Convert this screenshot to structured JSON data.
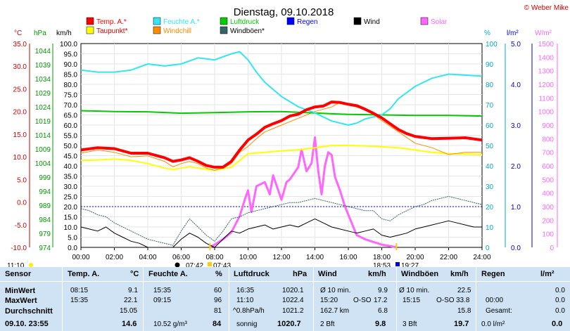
{
  "title": "Dienstag, 09.10.2018",
  "copyright": "© Weber Mike",
  "legend": [
    {
      "label": "Temp. A.*",
      "color": "#ff0000"
    },
    {
      "label": "Feuchte A.*",
      "color": "#33e6f0"
    },
    {
      "label": "Luftdruck",
      "color": "#00cc00"
    },
    {
      "label": "Regen",
      "color": "#0000ff"
    },
    {
      "label": "Wind",
      "color": "#000000"
    },
    {
      "label": "Solar",
      "color": "#ff66ff"
    },
    {
      "label": "Taupunkt*",
      "color": "#ffff00"
    },
    {
      "label": "Windchill",
      "color": "#ff8c00"
    },
    {
      "label": "Windböen*",
      "color": "#336666"
    }
  ],
  "axis_units": {
    "temp": "°C",
    "pressure": "hPa",
    "wind": "km/h",
    "humidity": "%",
    "rain": "l/m²",
    "solar": "W/m²"
  },
  "axis_ticks": {
    "temp": [
      "35.0",
      "30.0",
      "25.0",
      "20.0",
      "15.0",
      "10.0",
      "5.0",
      "0.0",
      "-5.0",
      "-10.0"
    ],
    "pressure": [
      "1044",
      "1039",
      "1034",
      "1029",
      "1024",
      "1019",
      "1014",
      "1009",
      "1004",
      "999",
      "994",
      "989",
      "984",
      "979",
      "974"
    ],
    "wind": [
      "100.0",
      "95.0",
      "90.0",
      "85.0",
      "80.0",
      "75.0",
      "70.0",
      "65.0",
      "60.0",
      "55.0",
      "50.0",
      "45.0",
      "40.0",
      "35.0",
      "30.0",
      "25.0",
      "20.0",
      "15.0",
      "10.0",
      "5.0",
      "0.0"
    ],
    "humidity": [
      "100",
      "90",
      "80",
      "70",
      "60",
      "50",
      "40",
      "30",
      "20",
      "10",
      "0"
    ],
    "rain": [
      "5.0",
      "4.0",
      "3.0",
      "2.0",
      "1.0",
      "0.0"
    ],
    "solar": [
      "1500",
      "1400",
      "1300",
      "1200",
      "1100",
      "1000",
      "900",
      "800",
      "700",
      "600",
      "500",
      "400",
      "300",
      "200",
      "100",
      "0"
    ]
  },
  "x_ticks": [
    "00:00",
    "02:00",
    "04:00",
    "06:00",
    "08:00",
    "10:00",
    "12:00",
    "14:00",
    "16:00",
    "18:00",
    "20:00",
    "22:00",
    "24:00"
  ],
  "sun_times": {
    "sunrise_start": "07:42",
    "sunrise": "07:43",
    "sunset": "18:53",
    "sunset_end": "19:27",
    "left_time": "11:10"
  },
  "chart_data": {
    "type": "line",
    "title": "Dienstag, 09.10.2018",
    "x_unit": "hour",
    "xlim": [
      0,
      24
    ],
    "series": [
      {
        "name": "Temp. A.*",
        "axis": "°C",
        "ylim": [
          -10,
          35
        ],
        "color": "#ff0000",
        "x": [
          0,
          1,
          2,
          3,
          4,
          5,
          5.5,
          6,
          6.5,
          7,
          7.5,
          8,
          8.5,
          9,
          9.5,
          10,
          10.5,
          11,
          11.5,
          12,
          12.5,
          13,
          13.5,
          14,
          14.5,
          15,
          15.5,
          16,
          16.5,
          17,
          17.5,
          18,
          18.5,
          19,
          19.5,
          20,
          21,
          22,
          23,
          24
        ],
        "y": [
          11.5,
          12,
          11.8,
          10.8,
          10.8,
          9.8,
          9.0,
          9.3,
          9.8,
          9.0,
          8.1,
          7.7,
          7.7,
          9.0,
          11.5,
          13.7,
          15.0,
          16.5,
          17.3,
          18.0,
          19.0,
          19.4,
          20.4,
          21.0,
          21.2,
          22.1,
          22.0,
          21.6,
          21.3,
          20.5,
          19.6,
          18.6,
          17.3,
          16.0,
          15.1,
          14.5,
          14.0,
          14.1,
          14.2,
          13.7
        ]
      },
      {
        "name": "Feuchte A.*",
        "axis": "%",
        "ylim": [
          0,
          100
        ],
        "color": "#33e6f0",
        "x": [
          0,
          1,
          2,
          3,
          4,
          5,
          6,
          7,
          8,
          9,
          9.5,
          10,
          10.5,
          11,
          12,
          13,
          14,
          15,
          16,
          16.5,
          17,
          18,
          18.5,
          19,
          20,
          21,
          22,
          24
        ],
        "y": [
          87,
          86,
          86,
          87,
          90,
          89,
          90,
          93,
          92,
          95,
          96,
          92,
          86,
          81,
          74,
          69,
          66,
          62,
          60,
          61,
          63,
          65,
          68,
          73,
          79,
          83,
          85,
          84
        ]
      },
      {
        "name": "Luftdruck",
        "axis": "hPa",
        "ylim": [
          974,
          1046
        ],
        "color": "#00cc00",
        "x": [
          0,
          2,
          4,
          6,
          8,
          10,
          12,
          14,
          15,
          16,
          18,
          20,
          22,
          24
        ],
        "y": [
          1022.3,
          1022.0,
          1021.9,
          1021.4,
          1021.6,
          1021.9,
          1022.0,
          1021.5,
          1021.2,
          1021.0,
          1020.8,
          1020.6,
          1020.6,
          1020.4
        ]
      },
      {
        "name": "Taupunkt*",
        "axis": "°C",
        "ylim": [
          -10,
          35
        ],
        "color": "#ffff00",
        "x": [
          0,
          1,
          2,
          3,
          4,
          5,
          5.5,
          6,
          6.5,
          7,
          8,
          9,
          10,
          11,
          12,
          13,
          14,
          15,
          16,
          17,
          18,
          19,
          20,
          21,
          22,
          24
        ],
        "y": [
          9.2,
          9.3,
          9.5,
          9.2,
          8.5,
          7.5,
          7.2,
          7.5,
          7.8,
          7.5,
          7.0,
          7.7,
          10.7,
          11.0,
          11.3,
          11.5,
          12.0,
          12.5,
          12.5,
          12.4,
          12.2,
          12.0,
          11.5,
          11.0,
          10.7,
          10.5
        ]
      },
      {
        "name": "Windchill",
        "axis": "°C",
        "ylim": [
          -10,
          35
        ],
        "color": "#ff8c00",
        "x": [
          0,
          1,
          2,
          3,
          4,
          5,
          5.5,
          6,
          6.5,
          7,
          7.5,
          8,
          8.5,
          9,
          9.5,
          10,
          10.5,
          11,
          12,
          13,
          14,
          15,
          15.5,
          16,
          17,
          18,
          19,
          20,
          21,
          22,
          23,
          24
        ],
        "y": [
          10.8,
          11.5,
          11.0,
          10.0,
          10.2,
          9.0,
          7.8,
          8.5,
          9.0,
          8.5,
          7.5,
          7.0,
          7.5,
          8.5,
          11.0,
          12.3,
          14.0,
          15.5,
          17.0,
          18.5,
          20.0,
          21.0,
          22.0,
          21.4,
          20.5,
          18.0,
          15.5,
          13.0,
          12.0,
          10.5,
          11.0,
          11.0
        ]
      },
      {
        "name": "Wind",
        "axis": "km/h",
        "ylim": [
          0,
          100
        ],
        "color": "#000000",
        "x": [
          0,
          0.5,
          1,
          1.5,
          2,
          2.5,
          3,
          3.5,
          4,
          4.5,
          5,
          5.5,
          6,
          6.5,
          7,
          7.5,
          8,
          8.5,
          9,
          9.5,
          10,
          10.5,
          11,
          11.5,
          12,
          12.5,
          13,
          13.5,
          14,
          14.5,
          15,
          15.5,
          16,
          16.5,
          17,
          17.5,
          18,
          18.5,
          19,
          19.5,
          20,
          20.5,
          21,
          21.5,
          22,
          22.5,
          23,
          23.5,
          24
        ],
        "y": [
          10,
          9,
          8,
          10,
          7,
          5,
          3,
          2,
          0,
          0,
          0,
          0,
          4,
          7,
          5,
          2,
          0,
          4,
          8,
          7,
          9,
          10,
          11,
          9,
          10,
          11,
          10,
          12,
          14,
          12,
          10,
          9,
          8,
          7,
          8,
          9,
          6,
          5,
          6,
          7,
          9,
          10,
          11,
          12,
          13,
          12,
          11,
          10,
          10
        ]
      },
      {
        "name": "Windböen*",
        "axis": "km/h",
        "ylim": [
          0,
          100
        ],
        "color": "#336666",
        "x": [
          0,
          0.5,
          1,
          1.5,
          2,
          2.5,
          3,
          3.5,
          4,
          4.5,
          5,
          5.5,
          6,
          6.5,
          7,
          7.5,
          8,
          8.5,
          9,
          9.5,
          10,
          10.5,
          11,
          11.5,
          12,
          12.5,
          13,
          13.5,
          14,
          14.5,
          15,
          15.5,
          16,
          16.5,
          17,
          17.5,
          18,
          18.5,
          19,
          19.5,
          20,
          20.5,
          21,
          21.5,
          22,
          22.5,
          23,
          23.5,
          24
        ],
        "y": [
          19,
          18,
          16,
          15,
          12,
          10,
          8,
          6,
          4,
          3,
          2,
          1,
          8,
          14,
          10,
          6,
          3,
          8,
          14,
          15,
          17,
          18,
          19,
          20,
          21,
          22,
          22,
          23,
          24,
          23,
          22,
          21,
          20,
          19,
          18,
          18,
          14,
          13,
          16,
          18,
          20,
          21,
          23,
          24,
          25,
          24,
          23,
          22,
          21
        ]
      },
      {
        "name": "Solar",
        "axis": "W/m²",
        "ylim": [
          0,
          1500
        ],
        "color": "#ff66ff",
        "x": [
          7.7,
          8,
          8.5,
          9,
          9.5,
          9.8,
          10,
          10.2,
          10.5,
          11,
          11.3,
          11.5,
          12,
          12.3,
          12.5,
          13,
          13.2,
          13.5,
          13.8,
          14,
          14.2,
          14.4,
          14.6,
          14.8,
          15,
          15.2,
          15.5,
          15.8,
          16,
          16.3,
          16.5,
          17,
          17.5,
          18,
          18.5,
          18.9
        ],
        "y": [
          0,
          20,
          60,
          110,
          230,
          350,
          420,
          260,
          450,
          480,
          390,
          530,
          350,
          480,
          500,
          590,
          720,
          560,
          620,
          810,
          560,
          390,
          600,
          700,
          680,
          520,
          420,
          300,
          240,
          150,
          90,
          60,
          40,
          20,
          10,
          0
        ]
      }
    ],
    "rain_line": {
      "name": "Regen",
      "axis": "l/m²",
      "value": 0,
      "color": "#0000ff"
    },
    "grid": true
  },
  "table": {
    "headers": {
      "sensor": "Sensor",
      "temp": "Temp. A.",
      "temp_unit": "°C",
      "hum": "Feuchte A.",
      "hum_unit": "%",
      "press": "Luftdruck",
      "press_unit": "hPa",
      "wind": "Wind",
      "wind_unit": "km/h",
      "gust": "Windböen",
      "gust_unit": "km/h",
      "rain": "Regen",
      "rain_unit": "l/m²"
    },
    "row_labels": {
      "min": "MinWert",
      "max": "MaxWert",
      "avg": "Durchschnitt",
      "now": "09.10. 23:55"
    },
    "temp": {
      "min_time": "08:15",
      "min": "9.1",
      "max_time": "15:35",
      "max": "22.1",
      "avg": "15.05",
      "now": "14.6"
    },
    "hum": {
      "min_time": "15:35",
      "min": "60",
      "max_time": "09:15",
      "max": "96",
      "avg": "81",
      "abs": "10.52 g/m³",
      "now": "84"
    },
    "press": {
      "min_time": "16:35",
      "min": "1020.1",
      "max_time": "11:10",
      "max": "1022.4",
      "trend": "^0.8hPa/h",
      "avg": "1021.2",
      "forecast": "sonnig",
      "now": "1020.7"
    },
    "wind": {
      "avg10_label": "Ø 10 min.",
      "avg10": "9.9",
      "max_time": "15:20",
      "max_dir": "O-SO",
      "max": "17.2",
      "dist": "162.7 km",
      "avg": "6.8",
      "bft": "2 Bft",
      "now": "9.8"
    },
    "gust": {
      "avg10_label": "Ø 10 min.",
      "avg10": "22.5",
      "max_time": "15:15",
      "max_dir": "O-SO",
      "max": "33.8",
      "avg": "15.8",
      "bft": "3 Bft",
      "now": "19.7"
    },
    "rain": {
      "min": "0.0",
      "max_time": "00:00",
      "max": "0.0",
      "total_label": "Gesamt:",
      "total": "0.0",
      "now_label": "0.0 l/m²",
      "now": "0.0"
    }
  }
}
